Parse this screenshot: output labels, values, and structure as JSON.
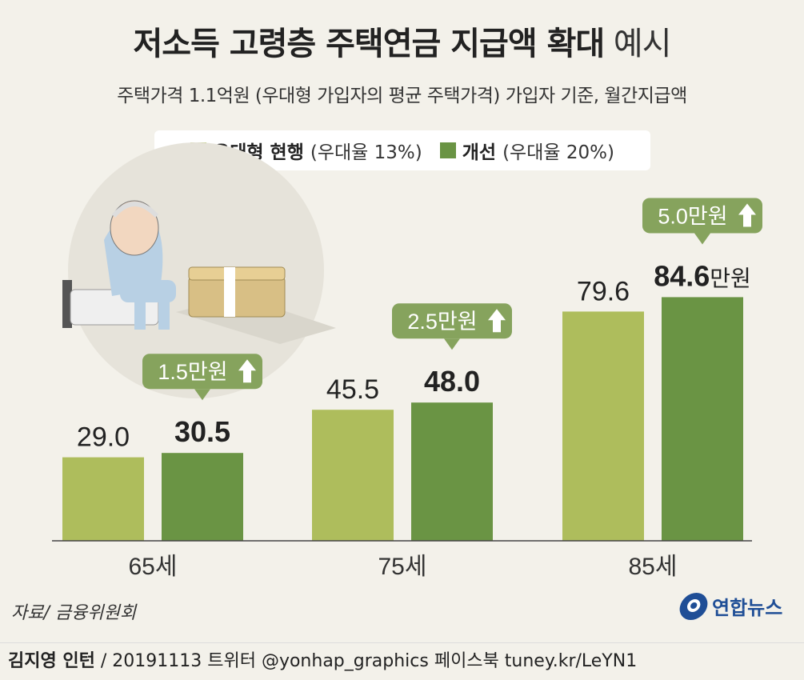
{
  "header": {
    "title_bold": "저소득 고령층 주택연금 지급액 확대",
    "title_light": "예시",
    "subtitle": "주택가격 1.1억원 (우대형 가입자의 평균 주택가격) 가입자 기준, 월간지급액"
  },
  "legend": {
    "current_name": "우대형 현행",
    "current_note": "(우대율 13%)",
    "improved_name": "개선",
    "improved_note": "(우대율 20%)"
  },
  "colors": {
    "current": "#aebd5c",
    "improved": "#6a9444",
    "callout": "#86a35d",
    "background": "#f3f1ea"
  },
  "chart_data": {
    "type": "bar",
    "title": "저소득 고령층 주택연금 지급액 확대 예시",
    "categories": [
      "65세",
      "75세",
      "85세"
    ],
    "series": [
      {
        "name": "우대형 현행 (우대율 13%)",
        "values": [
          29.0,
          45.5,
          79.6
        ],
        "labels": [
          "29.0",
          "45.5",
          "79.6"
        ]
      },
      {
        "name": "개선 (우대율 20%)",
        "values": [
          30.5,
          48.0,
          84.6
        ],
        "labels": [
          "30.5",
          "48.0",
          "84.6"
        ]
      }
    ],
    "increase_labels": [
      "1.5만원",
      "2.5만원",
      "5.0만원"
    ],
    "last_value_unit": "만원",
    "ylim": [
      0,
      100
    ],
    "grid": false,
    "legend_position": "top-center"
  },
  "source": "자료/ 금융위원회",
  "logo_text": "연합뉴스",
  "footer": {
    "author": "김지영 인턴",
    "rest": " / 20191113  트위터 @yonhap_graphics  페이스북 tuney.kr/LeYN1"
  }
}
